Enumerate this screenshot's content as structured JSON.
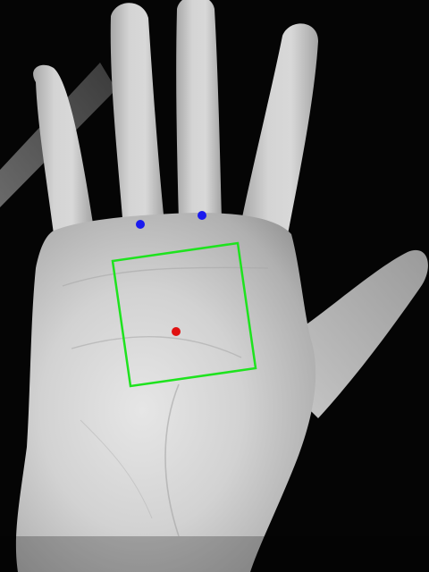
{
  "scene": {
    "subject": "palm",
    "background_color": "#050505",
    "skin_highlight": "#e2e2e2",
    "skin_mid": "#bdbdbd",
    "skin_shadow": "#8a8a8a"
  },
  "annotations": {
    "roi_box_color": "#1ee31e",
    "center_point_color": "#e01010",
    "keypoint_color": "#1a1aee",
    "keypoint_count": 2,
    "center_point_count": 1
  }
}
